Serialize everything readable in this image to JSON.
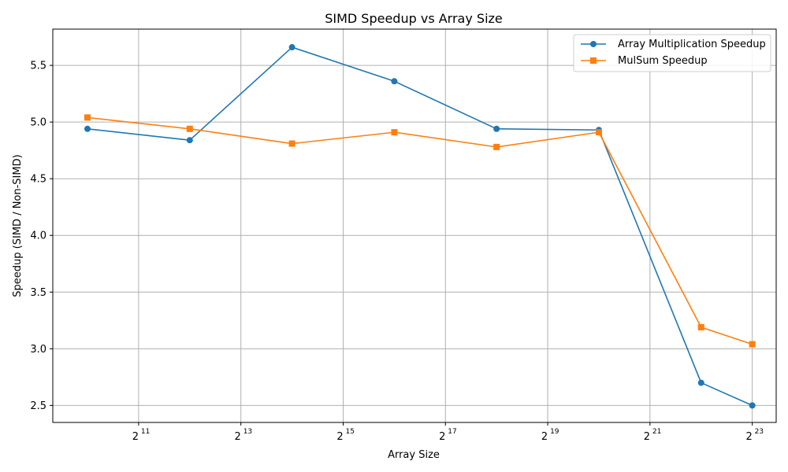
{
  "colors": {
    "series1": "#1f77b4",
    "series2": "#ff7f0e",
    "grid": "#b0b0b0"
  },
  "chart_data": {
    "type": "line",
    "title": "SIMD Speedup vs Array Size",
    "xlabel": "Array Size",
    "ylabel": "Speedup (SIMD / Non-SIMD)",
    "x_scale": "log2",
    "xlim": [
      640,
      11600000
    ],
    "ylim": [
      2.35,
      5.82
    ],
    "x_ticks": [
      {
        "value": 2048,
        "base": "2",
        "exp": "11"
      },
      {
        "value": 8192,
        "base": "2",
        "exp": "13"
      },
      {
        "value": 32768,
        "base": "2",
        "exp": "15"
      },
      {
        "value": 131072,
        "base": "2",
        "exp": "17"
      },
      {
        "value": 524288,
        "base": "2",
        "exp": "19"
      },
      {
        "value": 2097152,
        "base": "2",
        "exp": "21"
      },
      {
        "value": 8388608,
        "base": "2",
        "exp": "23"
      }
    ],
    "y_ticks": [
      {
        "value": 2.5,
        "label": "2.5"
      },
      {
        "value": 3.0,
        "label": "3.0"
      },
      {
        "value": 3.5,
        "label": "3.5"
      },
      {
        "value": 4.0,
        "label": "4.0"
      },
      {
        "value": 4.5,
        "label": "4.5"
      },
      {
        "value": 5.0,
        "label": "5.0"
      },
      {
        "value": 5.5,
        "label": "5.5"
      }
    ],
    "grid": true,
    "legend_position": "top-right",
    "x": [
      1024,
      4096,
      16384,
      65536,
      262144,
      1048576,
      4194304,
      8388608
    ],
    "series": [
      {
        "name": "Array Multiplication Speedup",
        "marker": "circle",
        "values": [
          4.94,
          4.84,
          5.66,
          5.36,
          4.94,
          4.93,
          2.7,
          2.5
        ]
      },
      {
        "name": "MulSum Speedup",
        "marker": "square",
        "values": [
          5.04,
          4.94,
          4.81,
          4.91,
          4.78,
          4.91,
          3.19,
          3.04
        ]
      }
    ]
  }
}
